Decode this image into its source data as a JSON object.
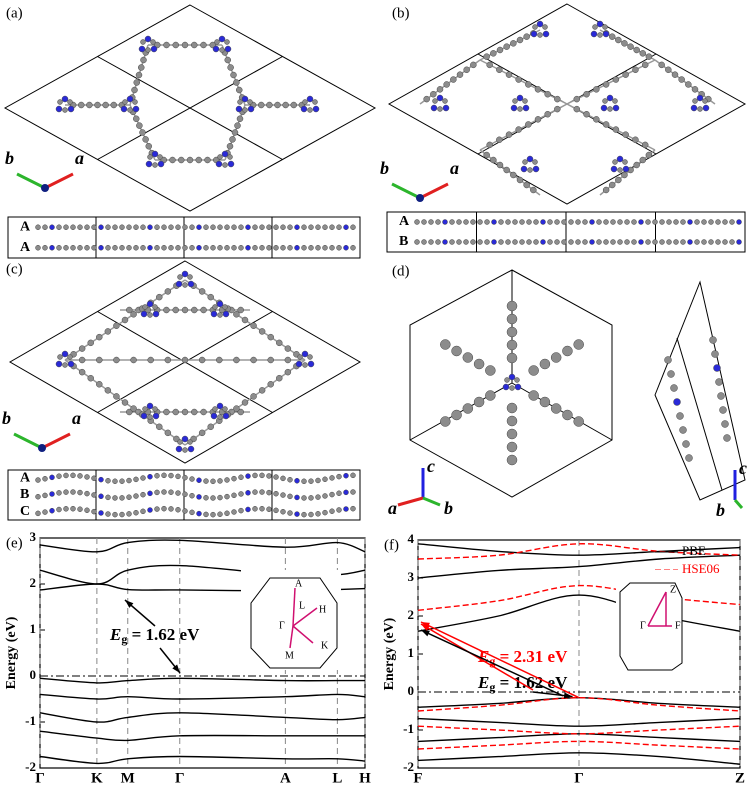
{
  "panels": {
    "a": {
      "label": "(a)",
      "axis_labels": [
        "b",
        "a"
      ],
      "layers": [
        "A",
        "A"
      ]
    },
    "b": {
      "label": "(b)",
      "axis_labels": [
        "b",
        "a"
      ],
      "layers": [
        "A",
        "B"
      ]
    },
    "c": {
      "label": "(c)",
      "axis_labels": [
        "b",
        "a"
      ],
      "layers": [
        "A",
        "B",
        "C"
      ]
    },
    "d": {
      "label": "(d)",
      "axis_labels_left": [
        "c",
        "a",
        "b"
      ],
      "axis_labels_right": [
        "c",
        "b"
      ]
    }
  },
  "chart_data": [
    {
      "type": "line",
      "panel_label": "(e)",
      "ylabel": "Energy (eV)",
      "x": [
        0,
        0.175,
        0.27,
        0.43,
        0.755,
        0.915,
        1
      ],
      "xlim": [
        0,
        1
      ],
      "xticks": [
        {
          "value": 0,
          "label": "Γ"
        },
        {
          "value": 0.175,
          "label": "K"
        },
        {
          "value": 0.27,
          "label": "M"
        },
        {
          "value": 0.43,
          "label": "Γ"
        },
        {
          "value": 0.755,
          "label": "A"
        },
        {
          "value": 0.915,
          "label": "L"
        },
        {
          "value": 1,
          "label": "H"
        }
      ],
      "ylim": [
        -2,
        3
      ],
      "yticks": [
        -2,
        -1,
        0,
        1,
        2,
        3
      ],
      "fermi_level": 0,
      "annotations": [
        {
          "symbol": "E",
          "subscript": "g",
          "text": " = 1.62 eV",
          "color": "#000000"
        }
      ],
      "inset_labels": [
        "A",
        "L",
        "H",
        "Γ",
        "M",
        "K"
      ],
      "series": [
        {
          "color": "#000000",
          "values": [
            1.87,
            2.0,
            1.88,
            1.87,
            1.85,
            1.88,
            1.9
          ]
        },
        {
          "color": "#000000",
          "values": [
            2.3,
            2.0,
            2.3,
            2.4,
            2.2,
            2.2,
            2.3
          ]
        },
        {
          "color": "#000000",
          "values": [
            2.85,
            2.7,
            2.9,
            2.95,
            2.8,
            2.9,
            2.7
          ]
        },
        {
          "color": "#000000",
          "values": [
            -0.05,
            -0.15,
            -0.1,
            -0.05,
            -0.1,
            -0.1,
            -0.1
          ]
        },
        {
          "color": "#000000",
          "values": [
            -0.4,
            -0.5,
            -0.45,
            -0.5,
            -0.45,
            -0.4,
            -0.45
          ]
        },
        {
          "color": "#000000",
          "values": [
            -0.8,
            -1.0,
            -0.9,
            -0.8,
            -0.9,
            -0.95,
            -0.9
          ]
        },
        {
          "color": "#000000",
          "values": [
            -1.2,
            -1.35,
            -1.4,
            -1.3,
            -1.3,
            -1.3,
            -1.3
          ]
        },
        {
          "color": "#000000",
          "values": [
            -1.75,
            -1.9,
            -1.8,
            -1.75,
            -1.8,
            -1.8,
            -1.85
          ]
        }
      ]
    },
    {
      "type": "line",
      "panel_label": "(f)",
      "ylabel": "Energy (eV)",
      "x": [
        0,
        0.25,
        0.5,
        0.75,
        1
      ],
      "xlim": [
        0,
        1
      ],
      "xticks": [
        {
          "value": 0,
          "label": "F"
        },
        {
          "value": 0.5,
          "label": "Γ"
        },
        {
          "value": 1,
          "label": "Z"
        }
      ],
      "ylim": [
        -2,
        4
      ],
      "yticks": [
        -2,
        -1,
        0,
        1,
        2,
        3,
        4
      ],
      "fermi_level": 0,
      "legend": [
        {
          "name": "PBE",
          "color": "#000000",
          "dashed": false
        },
        {
          "name": "HSE06",
          "color": "#ff0000",
          "dashed": true
        }
      ],
      "annotations": [
        {
          "symbol": "E",
          "subscript": "g",
          "text": " = 2.31 eV",
          "color": "#ff0000"
        },
        {
          "symbol": "E",
          "subscript": "g",
          "text": " = 1.62 eV",
          "color": "#000000"
        }
      ],
      "inset_labels": [
        "Z",
        "Γ",
        "F"
      ],
      "series": [
        {
          "color": "#000000",
          "dashed": false,
          "values": [
            1.6,
            2.0,
            2.55,
            2.0,
            1.6
          ]
        },
        {
          "color": "#000000",
          "dashed": false,
          "values": [
            3.0,
            3.2,
            3.3,
            3.5,
            3.6
          ]
        },
        {
          "color": "#000000",
          "dashed": false,
          "values": [
            3.9,
            3.7,
            3.6,
            3.7,
            3.8
          ]
        },
        {
          "color": "#000000",
          "dashed": false,
          "values": [
            -0.4,
            -0.3,
            -0.15,
            -0.3,
            -0.4
          ]
        },
        {
          "color": "#000000",
          "dashed": false,
          "values": [
            -0.7,
            -0.8,
            -0.9,
            -0.8,
            -0.7
          ]
        },
        {
          "color": "#000000",
          "dashed": false,
          "values": [
            -1.3,
            -1.2,
            -1.1,
            -1.2,
            -1.3
          ]
        },
        {
          "color": "#000000",
          "dashed": false,
          "values": [
            -1.8,
            -1.7,
            -1.6,
            -1.7,
            -1.9
          ]
        },
        {
          "color": "#ff0000",
          "dashed": true,
          "values": [
            2.15,
            2.4,
            2.8,
            2.5,
            2.3
          ]
        },
        {
          "color": "#ff0000",
          "dashed": true,
          "values": [
            3.5,
            3.6,
            3.9,
            3.7,
            3.6
          ]
        },
        {
          "color": "#ff0000",
          "dashed": true,
          "values": [
            -0.5,
            -0.35,
            -0.15,
            -0.35,
            -0.5
          ]
        },
        {
          "color": "#ff0000",
          "dashed": true,
          "values": [
            -0.9,
            -1.0,
            -1.1,
            -1.0,
            -0.9
          ]
        },
        {
          "color": "#ff0000",
          "dashed": true,
          "values": [
            -1.5,
            -1.4,
            -1.3,
            -1.4,
            -1.5
          ]
        }
      ]
    }
  ]
}
